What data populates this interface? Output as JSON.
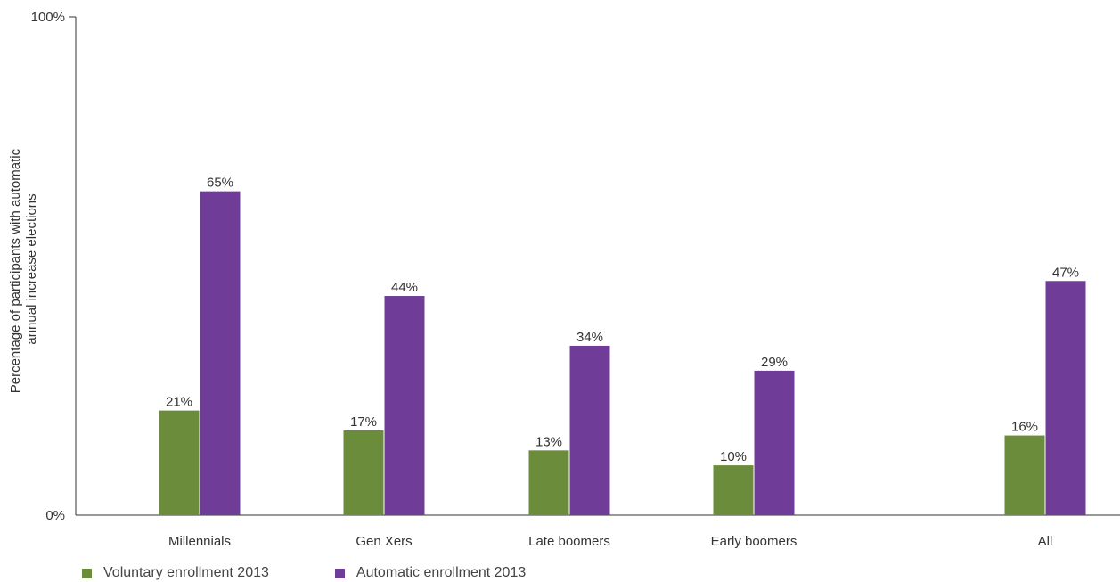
{
  "chart_data": {
    "type": "bar",
    "categories": [
      "Millennials",
      "Gen Xers",
      "Late boomers",
      "Early boomers",
      "All"
    ],
    "series": [
      {
        "name": "Voluntary enrollment 2013",
        "values": [
          21,
          17,
          13,
          10,
          16
        ],
        "labels": [
          "21%",
          "17%",
          "13%",
          "10%",
          "16%"
        ],
        "color": "#6a8c3b"
      },
      {
        "name": "Automatic enrollment 2013",
        "values": [
          65,
          44,
          34,
          29,
          47
        ],
        "labels": [
          "65%",
          "44%",
          "34%",
          "29%",
          "47%"
        ],
        "color": "#6f3d97"
      }
    ],
    "ylabel_line1": "Percentage of participants with automatic",
    "ylabel_line2": "annual  increase elections",
    "ylim": [
      0,
      100
    ],
    "yticks": [
      {
        "value": 0,
        "label": "0%"
      },
      {
        "value": 100,
        "label": "100%"
      }
    ],
    "grid": false,
    "legend_position": "bottom-left"
  }
}
